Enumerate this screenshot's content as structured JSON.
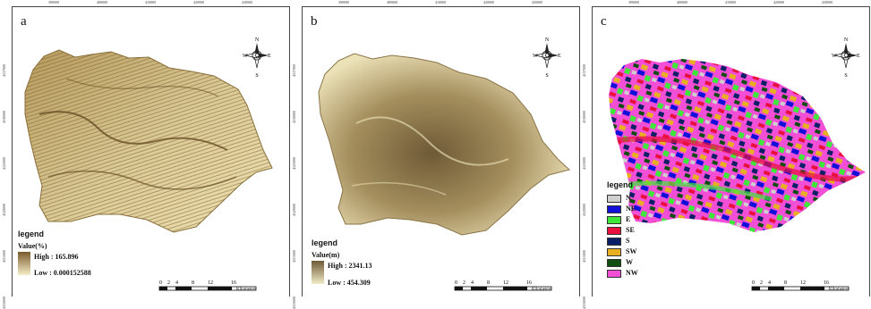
{
  "panels": [
    {
      "letter": "a",
      "legend_title": "legend",
      "value_title": "Value(%)",
      "high_label": "High : 165.896",
      "low_label": "Low : 0.000152588",
      "ramp_colors": [
        "#7a5a2c",
        "#f5edc8"
      ]
    },
    {
      "letter": "b",
      "legend_title": "legend",
      "value_title": "Value(m)",
      "high_label": "High : 2341.13",
      "low_label": "Low : 454.309",
      "ramp_colors": [
        "#6e5a36",
        "#f3ebc7"
      ]
    },
    {
      "letter": "c",
      "legend_title": "legend",
      "aspect_classes": [
        {
          "label": "N",
          "color": "#cfcfcf"
        },
        {
          "label": "NE",
          "color": "#1010d8"
        },
        {
          "label": "E",
          "color": "#3ee83a"
        },
        {
          "label": "SE",
          "color": "#e8103c"
        },
        {
          "label": "S",
          "color": "#0b1f66"
        },
        {
          "label": "SW",
          "color": "#e8b020"
        },
        {
          "label": "W",
          "color": "#0e4d10"
        },
        {
          "label": "NW",
          "color": "#f24fd6"
        }
      ]
    }
  ],
  "north_arrow": {
    "n": "N",
    "s": "S",
    "e": "E",
    "w": "W"
  },
  "scale": {
    "ticks": [
      "0",
      "2",
      "4",
      "8",
      "12",
      "16"
    ],
    "unit": "Kilometers"
  },
  "top_ticks": [
    "390000",
    "400000",
    "410000",
    "420000",
    "430000"
  ],
  "left_ticks": [
    "4137000",
    "4130000",
    "4125000",
    "4120000",
    "4115000",
    "4110000"
  ]
}
